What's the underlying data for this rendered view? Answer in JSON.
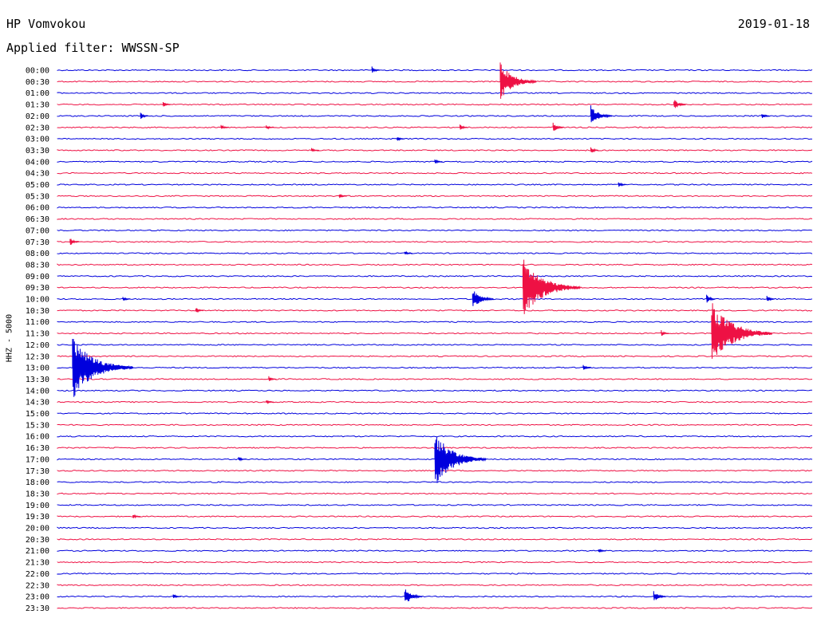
{
  "header": {
    "station": "HP Vomvokou",
    "filter": "Applied filter: WWSSN-SP",
    "date": "2019-01-18"
  },
  "chart_data": {
    "type": "line",
    "ylabel": "HHZ - 5000",
    "colors": [
      "#0000dd",
      "#ee1144"
    ],
    "rows": [
      "00:00",
      "00:30",
      "01:00",
      "01:30",
      "02:00",
      "02:30",
      "03:00",
      "03:30",
      "04:00",
      "04:30",
      "05:00",
      "05:30",
      "06:00",
      "06:30",
      "07:00",
      "07:30",
      "08:00",
      "08:30",
      "09:00",
      "09:30",
      "10:00",
      "10:30",
      "11:00",
      "11:30",
      "12:00",
      "12:30",
      "13:00",
      "13:30",
      "14:00",
      "14:30",
      "15:00",
      "15:30",
      "16:00",
      "16:30",
      "17:00",
      "17:30",
      "18:00",
      "18:30",
      "19:00",
      "19:30",
      "20:00",
      "20:30",
      "21:00",
      "21:30",
      "22:00",
      "22:30",
      "23:00",
      "23:30"
    ],
    "events": [
      {
        "row": "00:00",
        "minute": 12.5,
        "amp": 5
      },
      {
        "row": "00:30",
        "minute": 17.6,
        "amp": 24
      },
      {
        "row": "01:30",
        "minute": 4.2,
        "amp": 4
      },
      {
        "row": "01:30",
        "minute": 24.5,
        "amp": 8
      },
      {
        "row": "02:00",
        "minute": 3.3,
        "amp": 5
      },
      {
        "row": "02:00",
        "minute": 21.2,
        "amp": 14
      },
      {
        "row": "02:00",
        "minute": 28.0,
        "amp": 4
      },
      {
        "row": "02:30",
        "minute": 6.5,
        "amp": 3
      },
      {
        "row": "02:30",
        "minute": 8.3,
        "amp": 3
      },
      {
        "row": "02:30",
        "minute": 16.0,
        "amp": 4
      },
      {
        "row": "02:30",
        "minute": 19.7,
        "amp": 7
      },
      {
        "row": "03:00",
        "minute": 13.5,
        "amp": 3
      },
      {
        "row": "03:30",
        "minute": 10.1,
        "amp": 3
      },
      {
        "row": "03:30",
        "minute": 21.2,
        "amp": 5
      },
      {
        "row": "04:00",
        "minute": 15.0,
        "amp": 3
      },
      {
        "row": "05:00",
        "minute": 22.3,
        "amp": 4
      },
      {
        "row": "05:30",
        "minute": 11.2,
        "amp": 3
      },
      {
        "row": "07:30",
        "minute": 0.5,
        "amp": 6
      },
      {
        "row": "08:00",
        "minute": 13.8,
        "amp": 3
      },
      {
        "row": "09:30",
        "minute": 18.5,
        "amp": 38
      },
      {
        "row": "10:00",
        "minute": 16.5,
        "amp": 14
      },
      {
        "row": "10:00",
        "minute": 2.6,
        "amp": 3
      },
      {
        "row": "10:00",
        "minute": 25.8,
        "amp": 6
      },
      {
        "row": "10:00",
        "minute": 28.2,
        "amp": 5
      },
      {
        "row": "10:30",
        "minute": 5.5,
        "amp": 4
      },
      {
        "row": "11:30",
        "minute": 26.0,
        "amp": 40
      },
      {
        "row": "11:30",
        "minute": 24.0,
        "amp": 4
      },
      {
        "row": "13:00",
        "minute": 0.6,
        "amp": 40
      },
      {
        "row": "13:00",
        "minute": 20.9,
        "amp": 5
      },
      {
        "row": "13:30",
        "minute": 8.4,
        "amp": 4
      },
      {
        "row": "14:30",
        "minute": 8.3,
        "amp": 3
      },
      {
        "row": "17:00",
        "minute": 15.0,
        "amp": 34
      },
      {
        "row": "17:00",
        "minute": 7.2,
        "amp": 3
      },
      {
        "row": "19:30",
        "minute": 3.0,
        "amp": 3
      },
      {
        "row": "21:00",
        "minute": 21.5,
        "amp": 3
      },
      {
        "row": "23:00",
        "minute": 13.8,
        "amp": 12
      },
      {
        "row": "23:00",
        "minute": 23.7,
        "amp": 8
      },
      {
        "row": "23:00",
        "minute": 4.6,
        "amp": 3
      }
    ]
  }
}
